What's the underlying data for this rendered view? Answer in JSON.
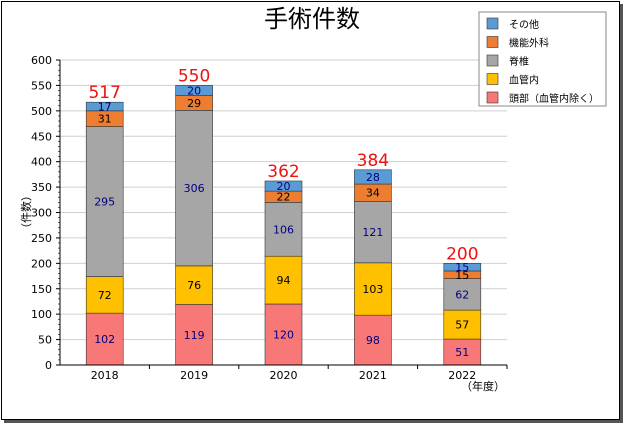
{
  "chart_data": {
    "type": "bar",
    "stacked": true,
    "title": "手術件数",
    "ylabel": "（件数）",
    "xlabel": "（年度）",
    "categories": [
      "2018",
      "2019",
      "2020",
      "2021",
      "2022"
    ],
    "ylim": [
      0,
      600
    ],
    "ytick_step": 50,
    "grid": true,
    "legend_position": "top-right",
    "series": [
      {
        "name": "頭部（血管内除く）",
        "color": "#f87878",
        "label_color": "#000080",
        "values": [
          102,
          119,
          120,
          98,
          51
        ]
      },
      {
        "name": "血管内",
        "color": "#ffc000",
        "label_color": "#000000",
        "values": [
          72,
          76,
          94,
          103,
          57
        ]
      },
      {
        "name": "脊椎",
        "color": "#a6a6a6",
        "label_color": "#000080",
        "values": [
          295,
          306,
          106,
          121,
          62
        ]
      },
      {
        "name": "機能外科",
        "color": "#ed7d31",
        "label_color": "#000000",
        "values": [
          31,
          29,
          22,
          34,
          15
        ]
      },
      {
        "name": "その他",
        "color": "#5b9bd5",
        "label_color": "#000080",
        "values": [
          17,
          20,
          20,
          28,
          15
        ]
      }
    ],
    "totals": [
      517,
      550,
      362,
      384,
      200
    ]
  }
}
